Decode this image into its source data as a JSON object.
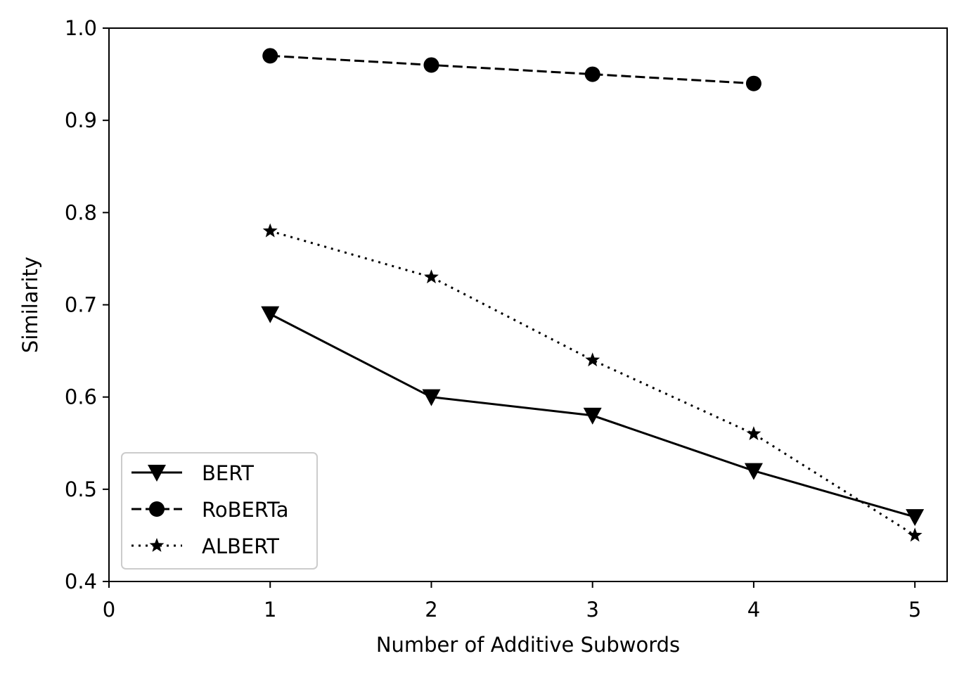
{
  "chart_data": {
    "type": "line",
    "title": "",
    "xlabel": "Number of Additive Subwords",
    "ylabel": "Similarity",
    "xlim": [
      0,
      5.2
    ],
    "ylim": [
      0.4,
      1.0
    ],
    "xticks": [
      0,
      1,
      2,
      3,
      4,
      5
    ],
    "xtick_labels": [
      "0",
      "1",
      "2",
      "3",
      "4",
      "5"
    ],
    "yticks": [
      0.4,
      0.5,
      0.6,
      0.7,
      0.8,
      0.9,
      1.0
    ],
    "ytick_labels": [
      "0.4",
      "0.5",
      "0.6",
      "0.7",
      "0.8",
      "0.9",
      "1.0"
    ],
    "grid": false,
    "legend_position": "lower-left",
    "series": [
      {
        "name": "BERT",
        "x": [
          1,
          2,
          3,
          4,
          5
        ],
        "y": [
          0.69,
          0.6,
          0.58,
          0.52,
          0.47
        ],
        "line_style": "solid",
        "marker": "triangle-down",
        "color": "#000000"
      },
      {
        "name": "RoBERTa",
        "x": [
          1,
          2,
          3,
          4
        ],
        "y": [
          0.97,
          0.96,
          0.95,
          0.94
        ],
        "line_style": "dashed",
        "marker": "circle",
        "color": "#000000"
      },
      {
        "name": "ALBERT",
        "x": [
          1,
          2,
          3,
          4,
          5
        ],
        "y": [
          0.78,
          0.73,
          0.64,
          0.56,
          0.45
        ],
        "line_style": "dotted",
        "marker": "star",
        "color": "#000000"
      }
    ]
  }
}
